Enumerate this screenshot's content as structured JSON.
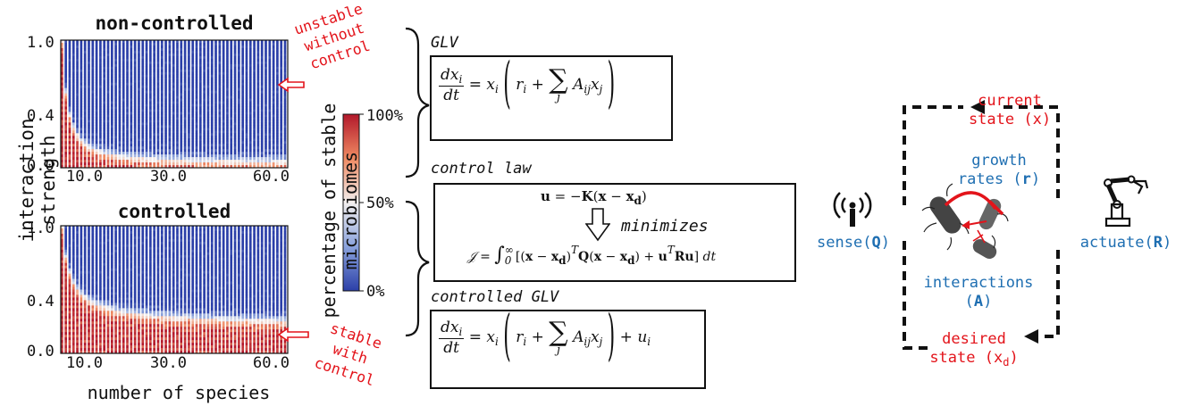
{
  "heatmaps": {
    "top_title": "non-controlled",
    "bottom_title": "controlled",
    "y_label": "interaction strength",
    "x_label": "number of species",
    "y_ticks": [
      "1.0",
      "0.4",
      "0.0"
    ],
    "x_ticks": [
      "10.0",
      "30.0",
      "60.0"
    ]
  },
  "colorbar": {
    "label": "percentage of stable microbiomes",
    "ticks": [
      "100%",
      "50%",
      "0%"
    ],
    "colors": {
      "high": "#b2182b",
      "mid": "#f7f7f7",
      "low": "#2b4fb5"
    }
  },
  "notes": {
    "unstable": [
      "unstable",
      "without",
      "control"
    ],
    "stable": [
      "stable",
      "with",
      "control"
    ]
  },
  "equations": {
    "glv_label": "GLV",
    "control_law_label": "control law",
    "minimizes_label": "minimizes",
    "controlled_glv_label": "controlled GLV"
  },
  "loop": {
    "current_state": [
      "current",
      "state (x)"
    ],
    "growth_rates": [
      "growth",
      "rates (",
      "r",
      ")"
    ],
    "interactions": [
      "interactions",
      "(",
      "A",
      ")"
    ],
    "desired_state": [
      "desired",
      "state (x",
      "d",
      ")"
    ],
    "sense": [
      "sense(",
      "Q",
      ")"
    ],
    "actuate": [
      "actuate(",
      "R",
      ")"
    ]
  },
  "chart_data": [
    {
      "type": "heatmap",
      "title": "non-controlled",
      "xlabel": "number of species",
      "ylabel": "interaction strength",
      "xlim": [
        2,
        60
      ],
      "ylim": [
        0,
        1
      ],
      "x_ticks": [
        10,
        30,
        60
      ],
      "y_ticks": [
        0.0,
        0.4,
        1.0
      ],
      "value_range": [
        0,
        100
      ],
      "description_values": "stable percentage near 100% only at low interaction strength; boundary falls from ~1.0 at 2 species to ~0.05 at 60 species"
    },
    {
      "type": "heatmap",
      "title": "controlled",
      "xlabel": "number of species",
      "ylabel": "interaction strength",
      "xlim": [
        2,
        60
      ],
      "ylim": [
        0,
        1
      ],
      "x_ticks": [
        10,
        30,
        60
      ],
      "y_ticks": [
        0.0,
        0.4,
        1.0
      ],
      "value_range": [
        0,
        100
      ],
      "description_values": "stable region enlarged; boundary falls from ~1.0 at 2 species to ~0.25 at 60 species"
    }
  ]
}
